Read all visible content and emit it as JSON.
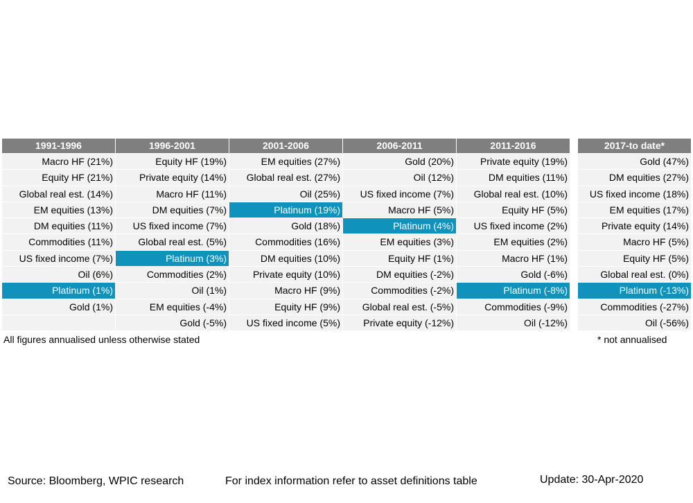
{
  "chart_data": {
    "type": "table",
    "periods": [
      "1991-1996",
      "1996-2001",
      "2001-2006",
      "2006-2011",
      "2011-2016"
    ],
    "rows": [
      [
        "Macro HF (21%)",
        "Equity HF (19%)",
        "EM equities (27%)",
        "Gold (20%)",
        "Private equity (19%)"
      ],
      [
        "Equity HF (21%)",
        "Private equity (14%)",
        "Global real est. (27%)",
        "Oil (12%)",
        "DM equities (11%)"
      ],
      [
        "Global real est. (14%)",
        "Macro HF (11%)",
        "Oil (25%)",
        "US fixed income (7%)",
        "Global real est. (10%)"
      ],
      [
        "EM equities (13%)",
        "DM equities (7%)",
        "Platinum (19%)",
        "Macro HF (5%)",
        "Equity HF (5%)"
      ],
      [
        "DM equities (11%)",
        "US fixed income (7%)",
        "Gold (18%)",
        "Platinum (4%)",
        "US fixed income (2%)"
      ],
      [
        "Commodities (11%)",
        "Global real est. (5%)",
        "Commodities (16%)",
        "EM equities (3%)",
        "EM equities (2%)"
      ],
      [
        "US fixed income (7%)",
        "Platinum (3%)",
        "DM equities (10%)",
        "Equity HF (1%)",
        "Macro HF (1%)"
      ],
      [
        "Oil (6%)",
        "Commodities (2%)",
        "Private equity (10%)",
        "DM equities (-2%)",
        "Gold (-6%)"
      ],
      [
        "Platinum (1%)",
        "Oil (1%)",
        "Macro HF (9%)",
        "Commodities (-2%)",
        "Platinum (-8%)"
      ],
      [
        "Gold (1%)",
        "EM equities (-4%)",
        "Equity HF (9%)",
        "Global real est. (-5%)",
        "Commodities (-9%)"
      ],
      [
        "",
        "Gold (-5%)",
        "US fixed income (5%)",
        "Private equity (-12%)",
        "Oil (-12%)"
      ]
    ],
    "highlight": "Platinum",
    "highlight_color": "#0f93bd",
    "header_color": "#7f7f7f",
    "cell_color": "#f2f2f2",
    "side_table": {
      "period": "2017-to date*",
      "rows": [
        "Gold (47%)",
        "DM equities (27%)",
        "US fixed income (18%)",
        "EM equities (17%)",
        "Private equity (14%)",
        "Macro HF (5%)",
        "Equity HF (5%)",
        "Global real est. (0%)",
        "Platinum (-13%)",
        "Commodities (-27%)",
        "Oil (-56%)"
      ]
    }
  },
  "notes": {
    "annualised": "All figures annualised unless otherwise stated",
    "not_annualised": "* not annualised"
  },
  "footer": {
    "source": "Source: Bloomberg, WPIC research",
    "index_info": "For index information refer to asset definitions table",
    "update": "Update: 30-Apr-2020"
  }
}
